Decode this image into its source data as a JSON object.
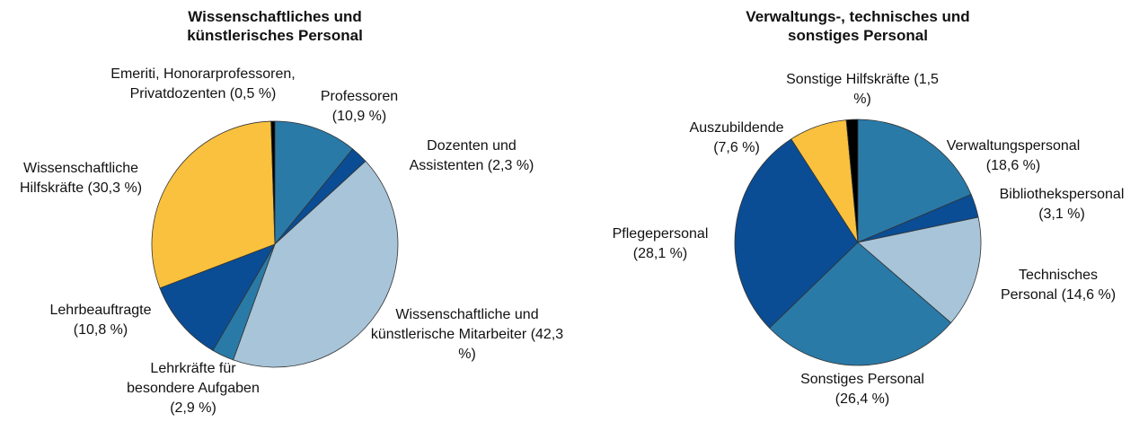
{
  "chart_data": [
    {
      "type": "pie",
      "title": "Wissenschaftliches und künstlerisches Personal",
      "categories": [
        "Professoren",
        "Dozenten und Assistenten",
        "Wissenschaftliche und künstlerische Mitarbeiter",
        "Lehrkräfte für besondere Aufgaben",
        "Lehrbeauftragte",
        "Wissenschaftliche Hilfskräfte",
        "Emeriti, Honorarprofessoren, Privatdozenten"
      ],
      "values": [
        10.9,
        2.3,
        42.3,
        2.9,
        10.8,
        30.3,
        0.5
      ],
      "value_labels": [
        "(10,9 %)",
        "(2,3 %)",
        "(42,3 %)",
        "(2,9 %)",
        "(10,8 %)",
        "(30,3 %)",
        "(0,5 %)"
      ],
      "colors": [
        "#2a7aa8",
        "#0a4d94",
        "#a7c4d8",
        "#2a7aa8",
        "#0a4d94",
        "#f9c13e",
        "#000000"
      ]
    },
    {
      "type": "pie",
      "title": "Verwaltungs-, technisches und sonstiges Personal",
      "categories": [
        "Verwaltungspersonal",
        "Bibliothekspersonal",
        "Technisches Personal",
        "Sonstiges Personal",
        "Pflegepersonal",
        "Auszubildende",
        "Sonstige Hilfskräfte"
      ],
      "values": [
        18.6,
        3.1,
        14.6,
        26.4,
        28.1,
        7.6,
        1.5
      ],
      "value_labels": [
        "(18,6 %)",
        "(3,1 %)",
        "(14,6 %)",
        "(26,4 %)",
        "(28,1 %)",
        "(7,6 %)",
        "(1,5 %)"
      ],
      "colors": [
        "#2a7aa8",
        "#0a4d94",
        "#a7c4d8",
        "#2a7aa8",
        "#0a4d94",
        "#f9c13e",
        "#000000"
      ]
    }
  ]
}
